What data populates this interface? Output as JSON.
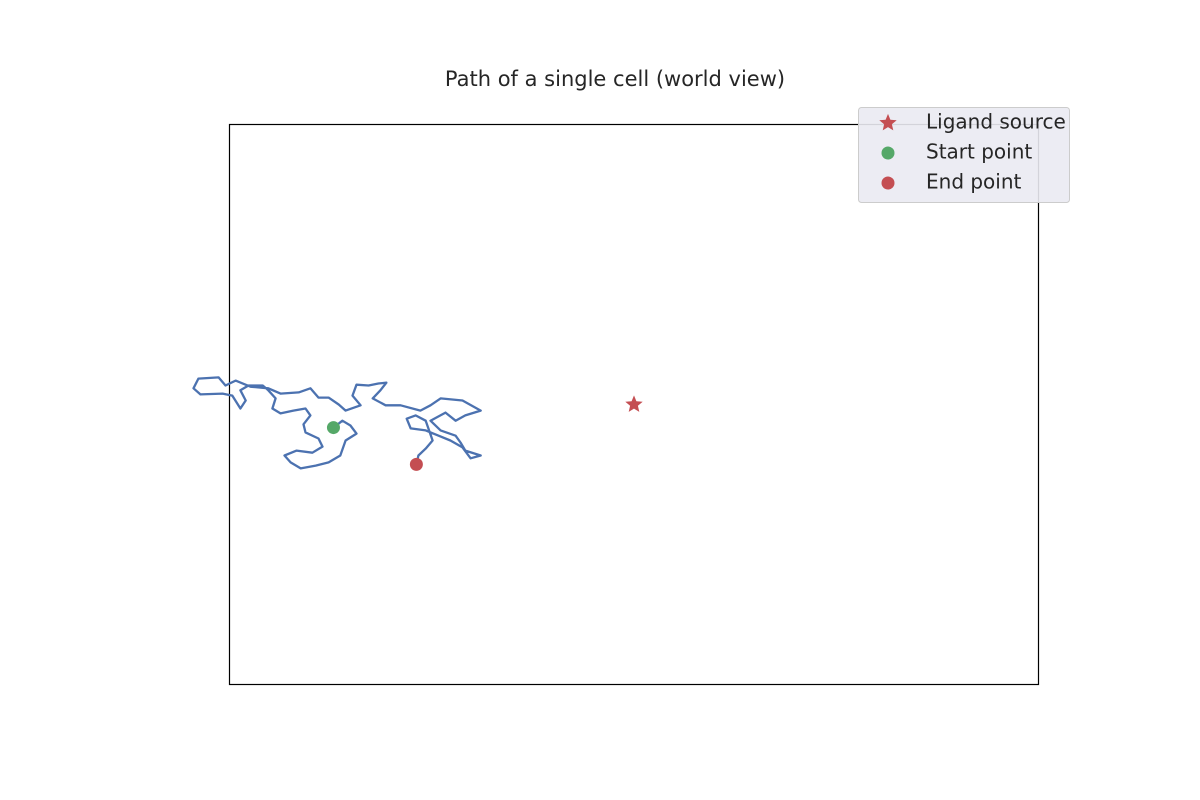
{
  "chart_data": {
    "type": "line",
    "title": "Path of a single cell (world view)",
    "xlim": [
      -100,
      100
    ],
    "ylim": [
      -69.2,
      69.2
    ],
    "path": {
      "color": "#4c72b0",
      "x": [
        -74.3,
        -72.1,
        -70.1,
        -68.6,
        -71.3,
        -72.6,
        -75.5,
        -78.7,
        -82.4,
        -84.9,
        -86.4,
        -83.4,
        -79.5,
        -77.0,
        -78.0,
        -81.2,
        -81.7,
        -80.0,
        -81.2,
        -84.2,
        -87.4,
        -89.4,
        -88.6,
        -90.4,
        -91.8,
        -95.3,
        -97.3,
        -96.0,
        -97.3,
        -99.3,
        -101.7,
        -107.2,
        -108.9,
        -107.7,
        -102.7,
        -101.0,
        -98.5,
        -94.8,
        -90.4,
        -87.4,
        -82.9,
        -80.0,
        -78.0,
        -75.5,
        -73.0,
        -71.3,
        -67.6,
        -69.6,
        -68.6,
        -65.6,
        -63.2,
        -61.2,
        -62.7,
        -64.6,
        -61.4,
        -57.7,
        -52.8,
        -50.3,
        -47.8,
        -42.4,
        -37.9,
        -41.7,
        -44.1,
        -46.6,
        -50.3,
        -47.8,
        -44.1,
        -42.9,
        -41.7,
        -37.9,
        -40.4,
        -42.4,
        -45.4,
        -48.3,
        -51.5,
        -55.2,
        -56.2,
        -54.0,
        -51.5,
        -49.8,
        -51.5,
        -53.3,
        -53.8
      ],
      "y": [
        -5.7,
        -4.0,
        -5.2,
        -7.2,
        -8.9,
        -12.6,
        -14.3,
        -15.1,
        -15.8,
        -14.3,
        -12.6,
        -11.4,
        -11.9,
        -10.4,
        -8.4,
        -6.9,
        -4.9,
        -2.7,
        -1.0,
        -1.5,
        -2.2,
        -1.0,
        1.5,
        3.5,
        4.7,
        4.7,
        3.5,
        1.0,
        -1.0,
        2.2,
        2.7,
        2.5,
        4.0,
        6.4,
        6.7,
        4.7,
        5.9,
        4.4,
        4.0,
        2.7,
        3.0,
        4.0,
        1.7,
        1.7,
        0,
        -1.5,
        -0.2,
        2.2,
        4.9,
        4.7,
        5.2,
        5.4,
        3.5,
        1.5,
        -0.2,
        -0.2,
        -1.5,
        -0.2,
        1.5,
        1.0,
        -1.5,
        -2.7,
        -4.0,
        -2.0,
        -4.0,
        -6.4,
        -7.7,
        -9.4,
        -11.4,
        -12.6,
        -13.3,
        -10.6,
        -8.9,
        -7.7,
        -6.4,
        -5.9,
        -3.5,
        -2.7,
        -4.0,
        -8.9,
        -10.9,
        -12.6,
        -14.8
      ]
    },
    "markers": [
      {
        "name": "Ligand source",
        "marker": "star",
        "color": "#c44e52",
        "x": 0,
        "y": 0
      },
      {
        "name": "Start point",
        "marker": "circle",
        "color": "#55a868",
        "x": -74.3,
        "y": -5.7
      },
      {
        "name": "End point",
        "marker": "circle",
        "color": "#c44e52",
        "x": -53.8,
        "y": -14.8
      }
    ],
    "legend": "upper right"
  }
}
